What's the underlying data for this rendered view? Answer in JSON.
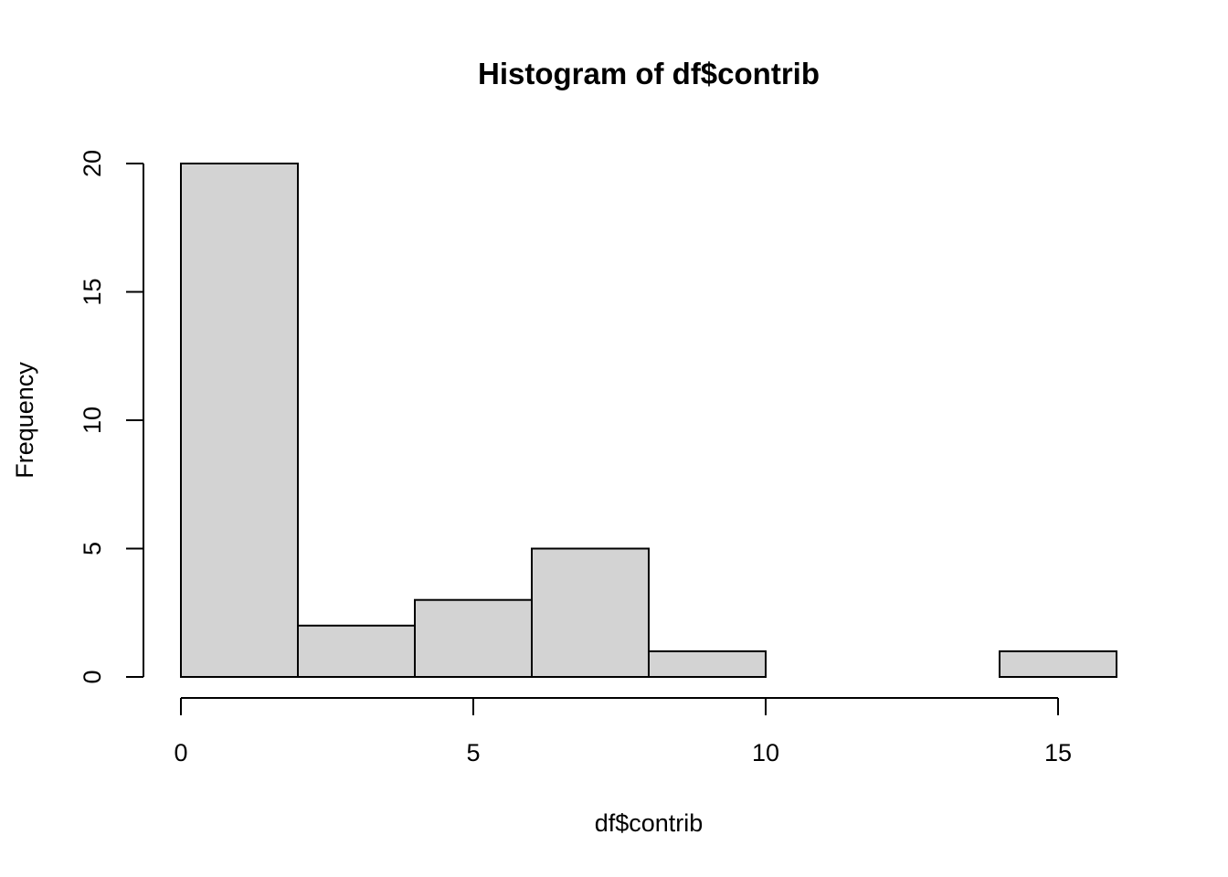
{
  "chart_data": {
    "type": "bar",
    "subtype": "histogram",
    "title": "Histogram of df$contrib",
    "xlabel": "df$contrib",
    "ylabel": "Frequency",
    "bins": [
      {
        "start": 0,
        "end": 2,
        "count": 20
      },
      {
        "start": 2,
        "end": 4,
        "count": 2
      },
      {
        "start": 4,
        "end": 6,
        "count": 3
      },
      {
        "start": 6,
        "end": 8,
        "count": 5
      },
      {
        "start": 8,
        "end": 10,
        "count": 1
      },
      {
        "start": 10,
        "end": 12,
        "count": 0
      },
      {
        "start": 12,
        "end": 14,
        "count": 0
      },
      {
        "start": 14,
        "end": 16,
        "count": 1
      }
    ],
    "xlim": [
      0,
      16
    ],
    "ylim": [
      0,
      20
    ],
    "x_ticks": [
      "0",
      "5",
      "10",
      "15"
    ],
    "y_ticks": [
      "0",
      "5",
      "10",
      "15",
      "20"
    ],
    "bar_fill": "#d3d3d3",
    "bar_stroke": "#000000",
    "grid": false,
    "legend": "none"
  }
}
